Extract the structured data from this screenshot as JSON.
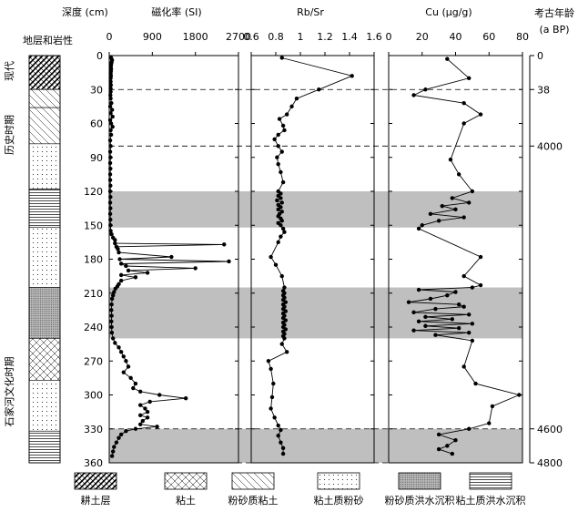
{
  "header": {
    "depth_label": "深度 (cm)",
    "strat_label": "地层和岩性",
    "age_label_1": "考古年龄",
    "age_label_2": "(a BP)"
  },
  "period_labels": [
    "现代",
    "历史时期",
    "石家河文化时期"
  ],
  "legend": [
    {
      "pattern": "hatch-dense",
      "label": "耕土层"
    },
    {
      "pattern": "crosshatch",
      "label": "粘土"
    },
    {
      "pattern": "diagonal",
      "label": "粉砂质粘土"
    },
    {
      "pattern": "dots",
      "label": "粘土质粉砂"
    },
    {
      "pattern": "dense-dots",
      "label": "粉砂质洪水沉积"
    },
    {
      "pattern": "lines",
      "label": "粘土质洪水沉积"
    }
  ],
  "chart_data": [
    {
      "type": "line",
      "title": "磁化率 (SI)",
      "xlabel": "磁化率 (SI)",
      "ylabel": "深度 (cm)",
      "xlim": [
        0,
        2700
      ],
      "ylim": [
        360,
        0
      ],
      "x_ticks": [
        "0",
        "900",
        "1800",
        "2700"
      ],
      "y_ticks": [
        "0",
        "30",
        "60",
        "90",
        "120",
        "150",
        "180",
        "210",
        "240",
        "270",
        "300",
        "330",
        "360"
      ],
      "series": [
        {
          "points": [
            [
              40,
              2
            ],
            [
              60,
              4
            ],
            [
              50,
              6
            ],
            [
              40,
              8
            ],
            [
              35,
              10
            ],
            [
              40,
              12
            ],
            [
              35,
              14
            ],
            [
              30,
              16
            ],
            [
              35,
              18
            ],
            [
              30,
              20
            ],
            [
              30,
              23
            ],
            [
              35,
              26
            ],
            [
              30,
              29
            ],
            [
              30,
              32
            ],
            [
              25,
              35
            ],
            [
              30,
              38
            ],
            [
              45,
              42
            ],
            [
              20,
              45
            ],
            [
              60,
              48
            ],
            [
              30,
              51
            ],
            [
              70,
              54
            ],
            [
              20,
              57
            ],
            [
              40,
              60
            ],
            [
              70,
              63
            ],
            [
              30,
              66
            ],
            [
              40,
              70
            ],
            [
              20,
              75
            ],
            [
              30,
              80
            ],
            [
              20,
              85
            ],
            [
              25,
              90
            ],
            [
              20,
              95
            ],
            [
              25,
              100
            ],
            [
              20,
              105
            ],
            [
              20,
              110
            ],
            [
              25,
              115
            ],
            [
              20,
              120
            ],
            [
              25,
              125
            ],
            [
              20,
              130
            ],
            [
              25,
              135
            ],
            [
              20,
              140
            ],
            [
              25,
              145
            ],
            [
              25,
              150
            ],
            [
              30,
              155
            ],
            [
              50,
              158
            ],
            [
              80,
              161
            ],
            [
              120,
              163
            ],
            [
              120,
              166
            ],
            [
              2400,
              167
            ],
            [
              150,
              169
            ],
            [
              180,
              171
            ],
            [
              200,
              174
            ],
            [
              1300,
              178
            ],
            [
              220,
              180
            ],
            [
              2500,
              182
            ],
            [
              250,
              184
            ],
            [
              350,
              186
            ],
            [
              1800,
              188
            ],
            [
              400,
              190
            ],
            [
              800,
              192
            ],
            [
              250,
              194
            ],
            [
              550,
              196
            ],
            [
              250,
              199
            ],
            [
              200,
              202
            ],
            [
              170,
              204
            ],
            [
              130,
              206
            ],
            [
              100,
              209
            ],
            [
              80,
              212
            ],
            [
              60,
              215
            ],
            [
              50,
              220
            ],
            [
              45,
              225
            ],
            [
              50,
              230
            ],
            [
              45,
              235
            ],
            [
              50,
              240
            ],
            [
              55,
              245
            ],
            [
              80,
              250
            ],
            [
              120,
              254
            ],
            [
              200,
              258
            ],
            [
              250,
              262
            ],
            [
              300,
              266
            ],
            [
              350,
              270
            ],
            [
              400,
              275
            ],
            [
              300,
              280
            ],
            [
              450,
              285
            ],
            [
              550,
              290
            ],
            [
              500,
              294
            ],
            [
              650,
              297
            ],
            [
              1050,
              300
            ],
            [
              1600,
              303
            ],
            [
              850,
              306
            ],
            [
              650,
              309
            ],
            [
              750,
              312
            ],
            [
              800,
              315
            ],
            [
              650,
              318
            ],
            [
              800,
              320
            ],
            [
              700,
              323
            ],
            [
              650,
              326
            ],
            [
              1000,
              328
            ],
            [
              550,
              330
            ],
            [
              350,
              332
            ],
            [
              250,
              335
            ],
            [
              200,
              338
            ],
            [
              150,
              342
            ],
            [
              100,
              346
            ],
            [
              80,
              350
            ],
            [
              60,
              354
            ]
          ]
        }
      ]
    },
    {
      "type": "line",
      "title": "Rb/Sr",
      "xlabel": "Rb/Sr",
      "ylabel": "深度 (cm)",
      "xlim": [
        0.6,
        1.6
      ],
      "ylim": [
        360,
        0
      ],
      "x_ticks": [
        "0.6",
        "0.8",
        "1",
        "1.2",
        "1.4",
        "1.6"
      ],
      "y_ticks": [
        "0",
        "30",
        "60",
        "90",
        "120",
        "150",
        "180",
        "210",
        "240",
        "270",
        "300",
        "330",
        "360"
      ],
      "series": [
        {
          "points": [
            [
              0.85,
              2
            ],
            [
              1.42,
              18
            ],
            [
              1.15,
              30
            ],
            [
              0.97,
              38
            ],
            [
              0.93,
              45
            ],
            [
              0.89,
              52
            ],
            [
              0.83,
              56
            ],
            [
              0.86,
              62
            ],
            [
              0.87,
              66
            ],
            [
              0.82,
              70
            ],
            [
              0.79,
              74
            ],
            [
              0.82,
              80
            ],
            [
              0.85,
              85
            ],
            [
              0.81,
              90
            ],
            [
              0.82,
              96
            ],
            [
              0.84,
              103
            ],
            [
              0.86,
              112
            ],
            [
              0.82,
              120
            ],
            [
              0.84,
              122
            ],
            [
              0.82,
              124
            ],
            [
              0.84,
              126
            ],
            [
              0.81,
              128
            ],
            [
              0.85,
              130
            ],
            [
              0.82,
              132
            ],
            [
              0.84,
              134
            ],
            [
              0.82,
              136
            ],
            [
              0.85,
              138
            ],
            [
              0.83,
              140
            ],
            [
              0.82,
              142
            ],
            [
              0.84,
              144
            ],
            [
              0.85,
              146
            ],
            [
              0.82,
              148
            ],
            [
              0.84,
              150
            ],
            [
              0.86,
              153
            ],
            [
              0.87,
              156
            ],
            [
              0.84,
              160
            ],
            [
              0.82,
              165
            ],
            [
              0.76,
              178
            ],
            [
              0.8,
              185
            ],
            [
              0.85,
              195
            ],
            [
              0.87,
              205
            ],
            [
              0.86,
              208
            ],
            [
              0.87,
              210
            ],
            [
              0.86,
              212
            ],
            [
              0.87,
              214
            ],
            [
              0.86,
              216
            ],
            [
              0.88,
              218
            ],
            [
              0.86,
              220
            ],
            [
              0.87,
              222
            ],
            [
              0.86,
              224
            ],
            [
              0.88,
              226
            ],
            [
              0.86,
              228
            ],
            [
              0.87,
              230
            ],
            [
              0.86,
              232
            ],
            [
              0.88,
              234
            ],
            [
              0.86,
              236
            ],
            [
              0.87,
              238
            ],
            [
              0.86,
              240
            ],
            [
              0.88,
              242
            ],
            [
              0.86,
              244
            ],
            [
              0.87,
              246
            ],
            [
              0.86,
              248
            ],
            [
              0.87,
              250
            ],
            [
              0.85,
              255
            ],
            [
              0.89,
              262
            ],
            [
              0.74,
              270
            ],
            [
              0.76,
              277
            ],
            [
              0.78,
              290
            ],
            [
              0.77,
              302
            ],
            [
              0.76,
              312
            ],
            [
              0.79,
              320
            ],
            [
              0.82,
              327
            ],
            [
              0.84,
              331
            ],
            [
              0.82,
              336
            ],
            [
              0.84,
              342
            ],
            [
              0.86,
              347
            ],
            [
              0.86,
              352
            ]
          ]
        }
      ]
    },
    {
      "type": "line",
      "title": "Cu (μg/g)",
      "xlabel": "Cu (μg/g)",
      "ylabel": "深度 (cm)",
      "xlim": [
        0,
        80
      ],
      "ylim": [
        360,
        0
      ],
      "x_ticks": [
        "0",
        "20",
        "40",
        "60",
        "80"
      ],
      "y_ticks": [
        "0",
        "30",
        "60",
        "90",
        "120",
        "150",
        "180",
        "210",
        "240",
        "270",
        "300",
        "330",
        "360"
      ],
      "series": [
        {
          "points": [
            [
              35,
              3
            ],
            [
              48,
              20
            ],
            [
              22,
              30
            ],
            [
              15,
              35
            ],
            [
              45,
              42
            ],
            [
              55,
              52
            ],
            [
              45,
              60
            ],
            [
              37,
              92
            ],
            [
              42,
              105
            ],
            [
              50,
              120
            ],
            [
              38,
              126
            ],
            [
              48,
              130
            ],
            [
              32,
              133
            ],
            [
              40,
              136
            ],
            [
              25,
              140
            ],
            [
              45,
              143
            ],
            [
              30,
              146
            ],
            [
              20,
              150
            ],
            [
              18,
              153
            ],
            [
              55,
              178
            ],
            [
              45,
              195
            ],
            [
              55,
              203
            ],
            [
              50,
              205
            ],
            [
              18,
              207
            ],
            [
              40,
              209
            ],
            [
              35,
              212
            ],
            [
              25,
              215
            ],
            [
              12,
              218
            ],
            [
              42,
              220
            ],
            [
              45,
              222
            ],
            [
              28,
              224
            ],
            [
              15,
              227
            ],
            [
              48,
              229
            ],
            [
              22,
              231
            ],
            [
              38,
              233
            ],
            [
              18,
              235
            ],
            [
              50,
              237
            ],
            [
              22,
              239
            ],
            [
              42,
              241
            ],
            [
              15,
              243
            ],
            [
              48,
              245
            ],
            [
              28,
              247
            ],
            [
              50,
              252
            ],
            [
              45,
              275
            ],
            [
              52,
              290
            ],
            [
              78,
              300
            ],
            [
              62,
              310
            ],
            [
              60,
              325
            ],
            [
              48,
              330
            ],
            [
              30,
              335
            ],
            [
              40,
              340
            ],
            [
              35,
              345
            ],
            [
              30,
              348
            ],
            [
              38,
              352
            ]
          ]
        }
      ]
    }
  ],
  "age_ticks": [
    {
      "depth": 0,
      "label": "0"
    },
    {
      "depth": 30,
      "label": "38"
    },
    {
      "depth": 80,
      "label": "4000"
    },
    {
      "depth": 330,
      "label": "4600"
    },
    {
      "depth": 360,
      "label": "4800"
    }
  ],
  "dashed_depths": [
    30,
    80,
    330,
    360
  ],
  "shaded_bands": [
    [
      120,
      152
    ],
    [
      205,
      250
    ],
    [
      330,
      360
    ]
  ],
  "lithology": [
    {
      "pattern": "hatch-dense",
      "from": 0,
      "to": 30
    },
    {
      "pattern": "diagonal",
      "from": 30,
      "to": 46
    },
    {
      "pattern": "diagonal",
      "from": 46,
      "to": 78
    },
    {
      "pattern": "dots",
      "from": 78,
      "to": 118
    },
    {
      "pattern": "lines",
      "from": 118,
      "to": 152
    },
    {
      "pattern": "dots",
      "from": 152,
      "to": 205
    },
    {
      "pattern": "dense-dots",
      "from": 205,
      "to": 250
    },
    {
      "pattern": "crosshatch",
      "from": 250,
      "to": 287
    },
    {
      "pattern": "dots",
      "from": 287,
      "to": 332
    },
    {
      "pattern": "lines",
      "from": 332,
      "to": 360
    }
  ]
}
